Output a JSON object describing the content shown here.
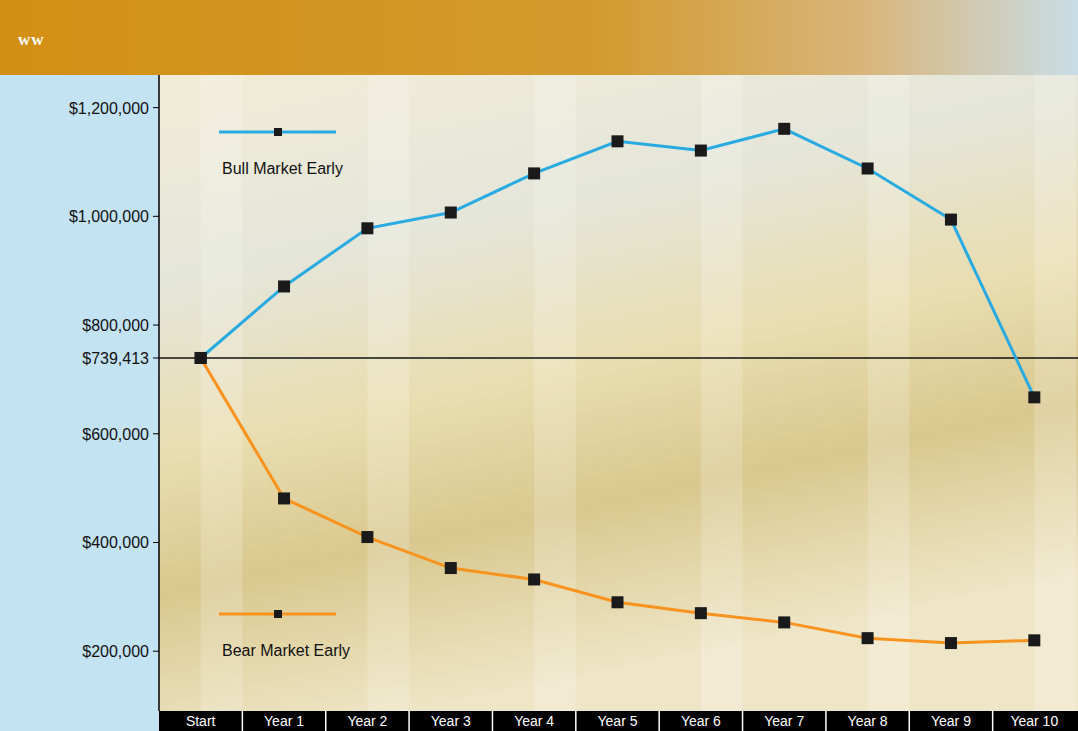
{
  "chart_data": {
    "type": "line",
    "title": "ww",
    "categories": [
      "Start",
      "Year 1",
      "Year 2",
      "Year 3",
      "Year 4",
      "Year 5",
      "Year 6",
      "Year 7",
      "Year 8",
      "Year 9",
      "Year 10"
    ],
    "series": [
      {
        "name": "Bull Market Early",
        "color": "#29abe2",
        "marker": "square",
        "values": [
          739413,
          871000,
          978000,
          1007000,
          1079000,
          1138000,
          1121000,
          1161000,
          1088000,
          994000,
          667000
        ]
      },
      {
        "name": "Bear Market Early",
        "color": "#f7931e",
        "marker": "square",
        "values": [
          739413,
          481000,
          410000,
          353000,
          332000,
          290000,
          270000,
          253000,
          224000,
          215000,
          220000
        ]
      }
    ],
    "ylim": [
      90000,
      1260000
    ],
    "yticks": [
      {
        "value": 200000,
        "label": "$200,000"
      },
      {
        "value": 400000,
        "label": "$400,000"
      },
      {
        "value": 600000,
        "label": "$600,000"
      },
      {
        "value": 739413,
        "label": "$739,413"
      },
      {
        "value": 800000,
        "label": "$800,000"
      },
      {
        "value": 1000000,
        "label": "$1,000,000"
      },
      {
        "value": 1200000,
        "label": "$1,200,000"
      }
    ],
    "reference_line": 739413,
    "grid": false,
    "legend": "left"
  }
}
